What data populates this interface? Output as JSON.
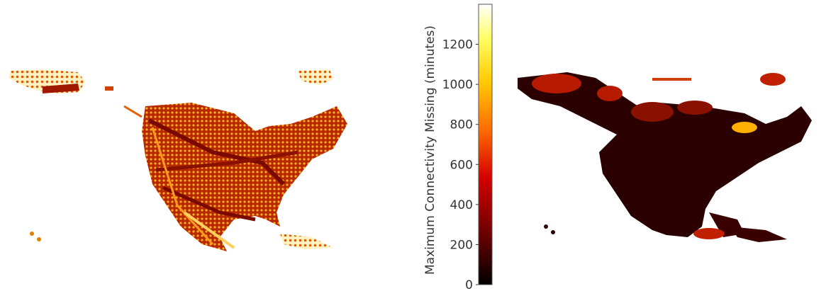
{
  "colorbar": {
    "title": "Maximum Connectivity Missing (minutes)",
    "min": 0,
    "max": 1400,
    "ticks": [
      0,
      200,
      400,
      600,
      800,
      1000,
      1200
    ],
    "colormap": "hot",
    "colormap_stops": [
      "#000000",
      "#6b0000",
      "#d40000",
      "#ff6a00",
      "#ffc800",
      "#ffff66",
      "#ffffff"
    ]
  },
  "panels": [
    {
      "name": "flight-track-coverage-map",
      "region": "North America",
      "dominant_color": "#b02000"
    },
    {
      "name": "max-connectivity-missing-map",
      "region": "North America",
      "dominant_color": "#2a0000"
    }
  ]
}
